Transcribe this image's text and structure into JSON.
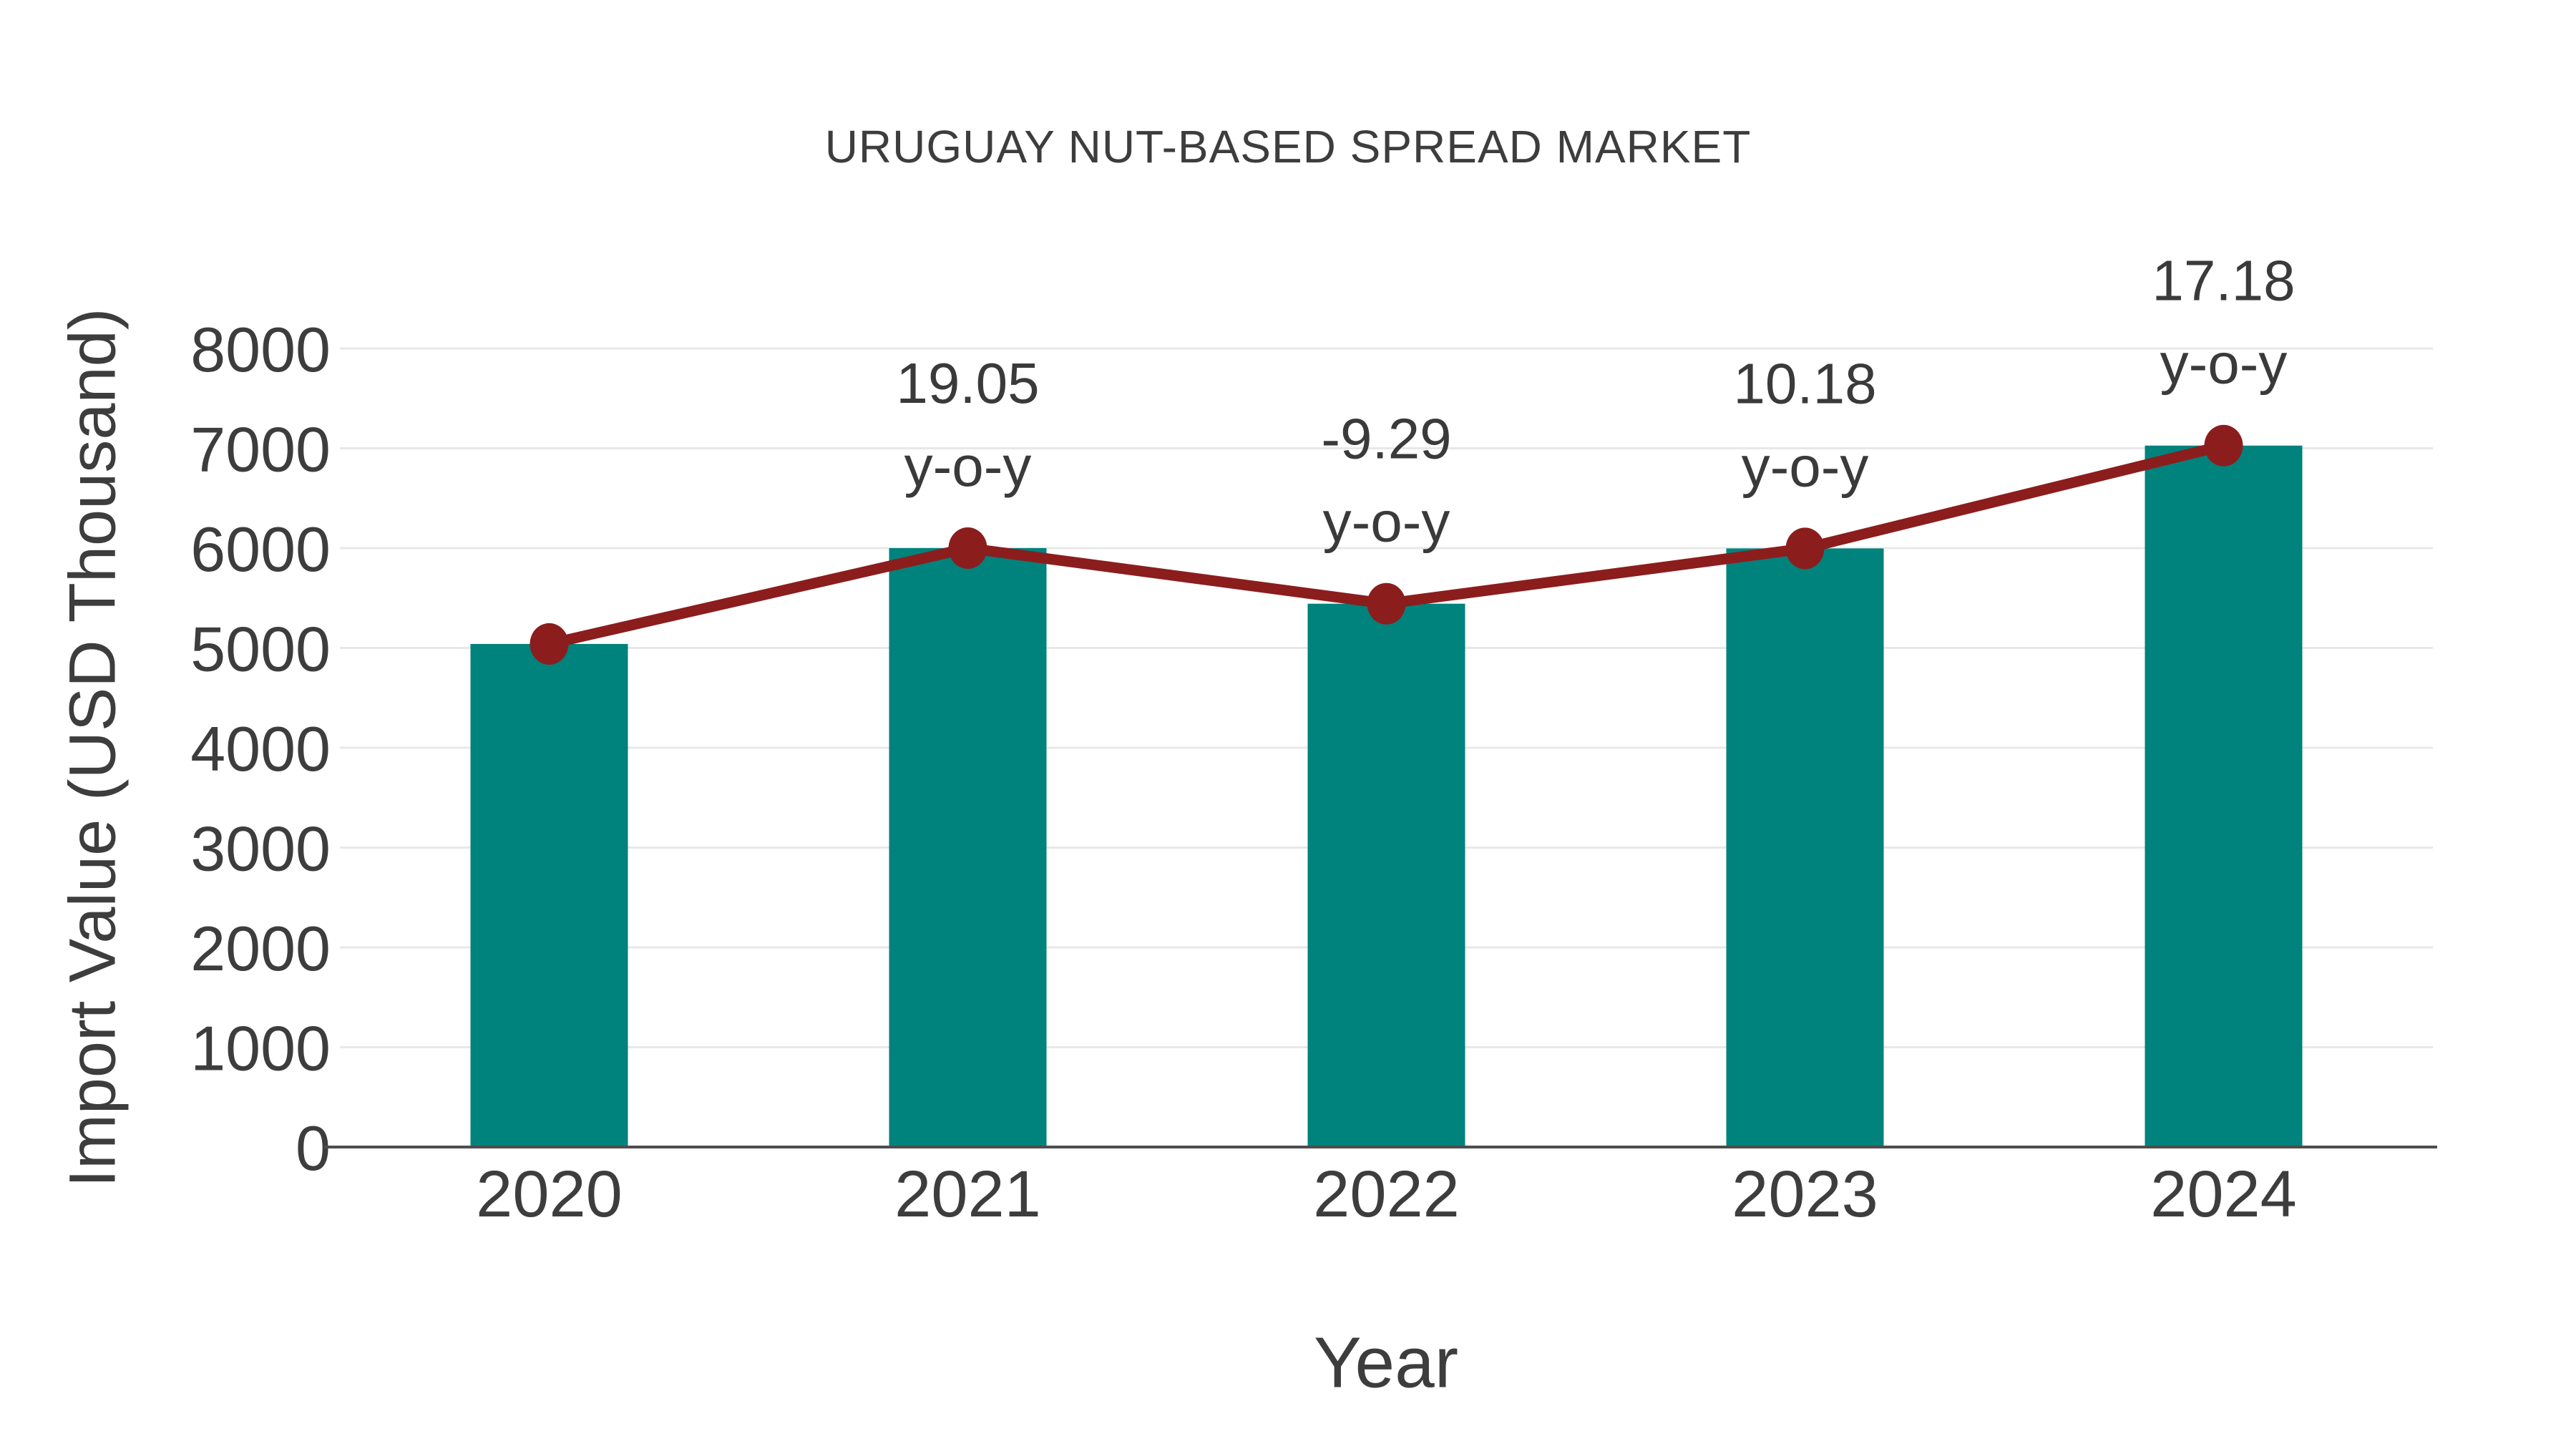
{
  "chart_data": {
    "type": "bar",
    "subtype": "bar-with-line-overlay",
    "title": "URUGUAY NUT-BASED SPREAD MARKET",
    "xlabel": "Year",
    "ylabel": "Import Value (USD Thousand)",
    "categories": [
      "2020",
      "2021",
      "2022",
      "2023",
      "2024"
    ],
    "series": [
      {
        "name": "Import Value bars",
        "type": "bar",
        "color": "#00827d",
        "values": [
          5040,
          6000,
          5443,
          5997,
          7027
        ]
      },
      {
        "name": "Import Value trend line",
        "type": "line",
        "color": "#8c1d1d",
        "values": [
          5040,
          6000,
          5443,
          5997,
          7027
        ]
      }
    ],
    "annotations": [
      {
        "category": "2021",
        "value": "19.05",
        "suffix": "y-o-y"
      },
      {
        "category": "2022",
        "value": "-9.29",
        "suffix": "y-o-y"
      },
      {
        "category": "2023",
        "value": "10.18",
        "suffix": "y-o-y"
      },
      {
        "category": "2024",
        "value": "17.18",
        "suffix": "y-o-y"
      }
    ],
    "yticks": [
      "0",
      "1000",
      "2000",
      "3000",
      "4000",
      "5000",
      "6000",
      "7000",
      "8000"
    ],
    "ylim": [
      0,
      8000
    ],
    "ytick_step": 1000,
    "grid": "horizontal",
    "legend_position": "none",
    "colors": {
      "bar": "#00827d",
      "line": "#8c1d1d",
      "marker": "#8c1d1d",
      "gridline": "#e8e8e8",
      "axis": "#4d4d4d",
      "text": "#3d3d3d"
    }
  }
}
